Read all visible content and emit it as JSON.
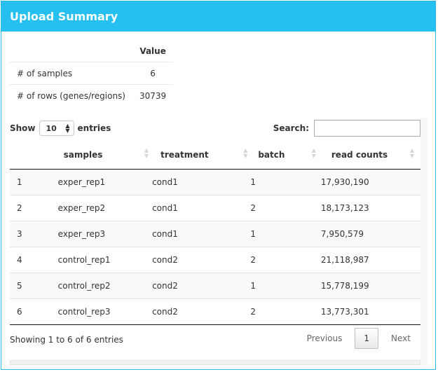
{
  "panel": {
    "title": "Upload Summary"
  },
  "summary": {
    "header": "Value",
    "rows": [
      {
        "label": "# of samples",
        "value": "6"
      },
      {
        "label": "# of rows (genes/regions)",
        "value": "30739"
      }
    ]
  },
  "controls": {
    "show_label": "Show",
    "entries_value": "10",
    "entries_label": "entries",
    "search_label": "Search:",
    "search_value": ""
  },
  "table": {
    "columns": [
      "",
      "samples",
      "treatment",
      "batch",
      "read counts"
    ],
    "rows": [
      [
        "1",
        "exper_rep1",
        "cond1",
        "1",
        "17,930,190"
      ],
      [
        "2",
        "exper_rep2",
        "cond1",
        "2",
        "18,173,123"
      ],
      [
        "3",
        "exper_rep3",
        "cond1",
        "1",
        "7,950,579"
      ],
      [
        "4",
        "control_rep1",
        "cond2",
        "2",
        "21,118,987"
      ],
      [
        "5",
        "control_rep2",
        "cond2",
        "1",
        "15,778,199"
      ],
      [
        "6",
        "control_rep3",
        "cond2",
        "2",
        "13,773,301"
      ]
    ]
  },
  "footer": {
    "info": "Showing 1 to 6 of 6 entries",
    "previous": "Previous",
    "current_page": "1",
    "next": "Next"
  },
  "colors": {
    "header_bg": "#25bff0",
    "header_text": "#ffffff"
  },
  "icons": {
    "sort": "sort-arrows-icon",
    "select": "up-down-caret-icon"
  }
}
